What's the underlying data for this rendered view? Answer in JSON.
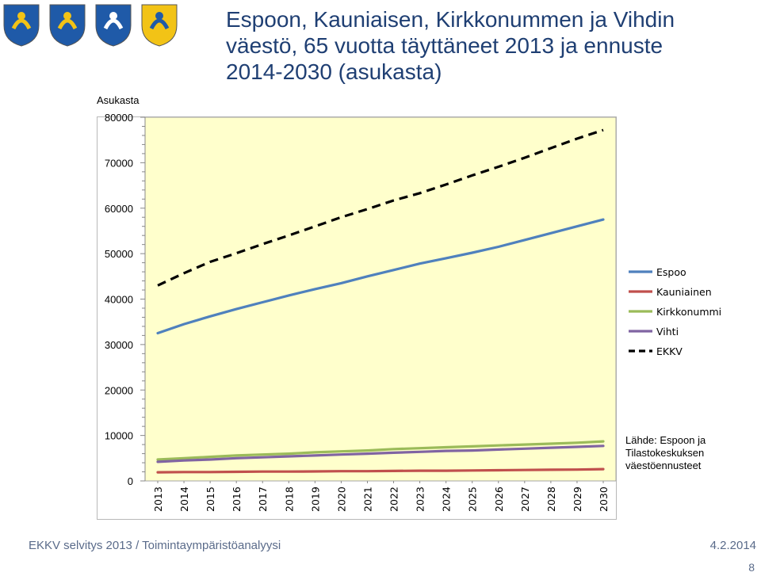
{
  "title_lines": [
    "Espoon, Kauniaisen, Kirkkonummen ja Vihdin",
    "väestö, 65 vuotta täyttäneet 2013 ja ennuste",
    "2014-2030 (asukasta)"
  ],
  "crests": [
    {
      "name": "espoo-crest",
      "color": "#1f5aa8",
      "accent": "#f2c316"
    },
    {
      "name": "kauniainen-crest",
      "color": "#1f5aa8",
      "accent": "#f2c316"
    },
    {
      "name": "kirkkonummi-crest",
      "color": "#1f5aa8",
      "accent": "#ffffff"
    },
    {
      "name": "vihti-crest",
      "color": "#f2c316",
      "accent": "#1f5aa8"
    }
  ],
  "chart_data": {
    "type": "line",
    "title": "Espoon, Kauniaisen, Kirkkonummen ja Vihdin väestö, 65 vuotta täyttäneet 2013 ja ennuste 2014-2030 (asukasta)",
    "ylabel": "Asukasta",
    "xlabel": "",
    "ylim": [
      0,
      80000
    ],
    "yticks": [
      0,
      10000,
      20000,
      30000,
      40000,
      50000,
      60000,
      70000,
      80000
    ],
    "y_tick_labels": [
      "0",
      "10000",
      "20000",
      "30000",
      "40000",
      "50000",
      "60000",
      "70000",
      "80000"
    ],
    "x": [
      "2013",
      "2014",
      "2015",
      "2016",
      "2017",
      "2018",
      "2019",
      "2020",
      "2021",
      "2022",
      "2023",
      "2024",
      "2025",
      "2026",
      "2027",
      "2028",
      "2029",
      "2030"
    ],
    "plot_background": "#ffffcc",
    "grid": false,
    "legend_position": "right",
    "series": [
      {
        "name": "Espoo",
        "color": "#4f81bd",
        "dash": false,
        "values": [
          32500,
          34500,
          36200,
          37800,
          39300,
          40800,
          42200,
          43500,
          45000,
          46400,
          47800,
          49000,
          50200,
          51500,
          53000,
          54500,
          56000,
          57500
        ]
      },
      {
        "name": "Kauniainen",
        "color": "#c0504d",
        "dash": false,
        "values": [
          1900,
          1950,
          1950,
          2000,
          2050,
          2050,
          2100,
          2150,
          2150,
          2200,
          2250,
          2250,
          2300,
          2350,
          2400,
          2450,
          2500,
          2600
        ]
      },
      {
        "name": "Kirkkonummi",
        "color": "#9bbb59",
        "dash": false,
        "values": [
          4700,
          5000,
          5300,
          5600,
          5800,
          6000,
          6300,
          6500,
          6700,
          7000,
          7200,
          7400,
          7600,
          7800,
          8000,
          8200,
          8400,
          8700
        ]
      },
      {
        "name": "Vihti",
        "color": "#8064a2",
        "dash": false,
        "values": [
          4200,
          4500,
          4700,
          5000,
          5200,
          5400,
          5600,
          5800,
          6000,
          6200,
          6400,
          6600,
          6700,
          6900,
          7100,
          7300,
          7500,
          7700
        ]
      },
      {
        "name": "EKKV",
        "color": "#000000",
        "dash": true,
        "values": [
          43000,
          45700,
          48200,
          50100,
          52100,
          54000,
          56000,
          58000,
          59800,
          61700,
          63300,
          65200,
          67200,
          69100,
          71100,
          73200,
          75300,
          77200
        ]
      }
    ]
  },
  "source_note": [
    "Lähde: Espoon ja",
    "Tilastokeskuksen",
    "väestöennusteet"
  ],
  "footer": {
    "left": "EKKV selvitys 2013 / Toimintaympäristöanalyysi",
    "date": "4.2.2014",
    "page": "8"
  }
}
